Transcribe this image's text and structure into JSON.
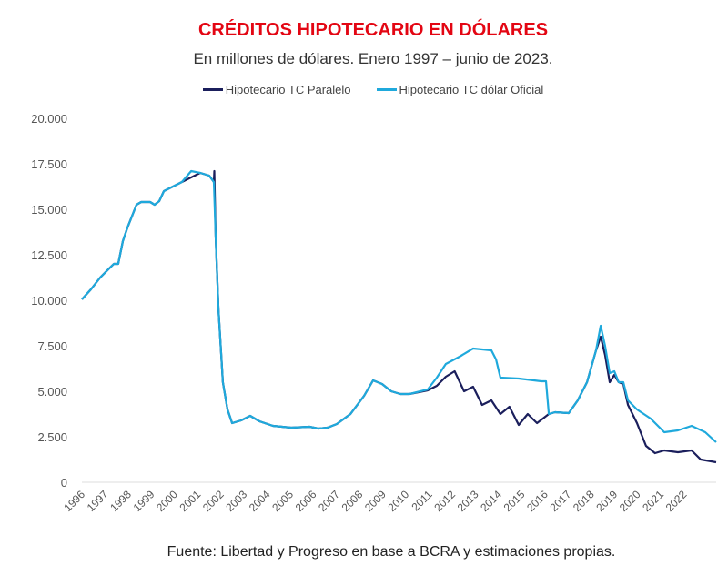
{
  "chart_data": {
    "type": "line",
    "title": "CRÉDITOS HIPOTECARIO EN DÓLARES",
    "subtitle": "En millones de dólares. Enero 1997 – junio de 2023.",
    "source": "Fuente: Libertad y Progreso en base a BCRA y estimaciones propias.",
    "xlabel": "",
    "ylabel": "",
    "xlim": [
      1996,
      2023.4
    ],
    "ylim": [
      0,
      20000
    ],
    "yticks": [
      0,
      2500,
      5000,
      7500,
      10000,
      12500,
      15000,
      17500,
      20000
    ],
    "ytick_labels": [
      "0",
      "2.500",
      "5.000",
      "7.500",
      "10.000",
      "12.500",
      "15.000",
      "17.500",
      "20.000"
    ],
    "xtick_labels": [
      "1996",
      "1997",
      "1998",
      "1999",
      "2000",
      "2001",
      "2002",
      "2003",
      "2004",
      "2005",
      "2006",
      "2007",
      "2008",
      "2009",
      "2010",
      "2011",
      "2012",
      "2013",
      "2014",
      "2015",
      "2016",
      "2017",
      "2018",
      "2019",
      "2020",
      "2021",
      "2022"
    ],
    "grid": false,
    "legend_position": "top",
    "series": [
      {
        "name": "Hipotecario TC Paralelo",
        "color": "#1b1f5c",
        "points": [
          [
            1996.0,
            10050
          ],
          [
            1996.39,
            10600
          ],
          [
            1996.79,
            11250
          ],
          [
            1997.18,
            11750
          ],
          [
            1997.38,
            12000
          ],
          [
            1997.57,
            12000
          ],
          [
            1997.77,
            13250
          ],
          [
            1997.97,
            14000
          ],
          [
            1998.36,
            15250
          ],
          [
            1998.56,
            15400
          ],
          [
            1998.95,
            15400
          ],
          [
            1999.14,
            15250
          ],
          [
            1999.34,
            15450
          ],
          [
            1999.54,
            16000
          ],
          [
            1999.93,
            16250
          ],
          [
            2000.32,
            16500
          ],
          [
            2001.72,
            17100
          ],
          [
            2001.11,
            17000
          ],
          [
            2001.5,
            16850
          ],
          [
            2001.7,
            16500
          ],
          [
            2001.78,
            13500
          ],
          [
            2001.9,
            9500
          ],
          [
            2002.09,
            5500
          ],
          [
            2002.29,
            4000
          ],
          [
            2002.49,
            3250
          ],
          [
            2002.88,
            3400
          ],
          [
            2003.27,
            3650
          ],
          [
            2003.67,
            3350
          ],
          [
            2004.25,
            3100
          ],
          [
            2005.04,
            3000
          ],
          [
            2005.83,
            3050
          ],
          [
            2006.22,
            2950
          ],
          [
            2006.61,
            3000
          ],
          [
            2007.01,
            3200
          ],
          [
            2007.6,
            3750
          ],
          [
            2008.19,
            4750
          ],
          [
            2008.58,
            5600
          ],
          [
            2008.97,
            5400
          ],
          [
            2009.36,
            5000
          ],
          [
            2009.76,
            4850
          ],
          [
            2010.15,
            4850
          ],
          [
            2010.94,
            5050
          ],
          [
            2011.33,
            5300
          ],
          [
            2011.72,
            5800
          ],
          [
            2012.1,
            6100
          ],
          [
            2012.51,
            5000
          ],
          [
            2012.9,
            5250
          ],
          [
            2013.29,
            4250
          ],
          [
            2013.69,
            4500
          ],
          [
            2014.08,
            3750
          ],
          [
            2014.47,
            4150
          ],
          [
            2014.87,
            3150
          ],
          [
            2015.26,
            3750
          ],
          [
            2015.66,
            3250
          ],
          [
            2016.17,
            3750
          ],
          [
            2016.44,
            3850
          ],
          [
            2017.03,
            3800
          ],
          [
            2017.42,
            4500
          ],
          [
            2017.82,
            5500
          ],
          [
            2018.21,
            7250
          ],
          [
            2018.41,
            8000
          ],
          [
            2018.6,
            7000
          ],
          [
            2018.8,
            5500
          ],
          [
            2019.0,
            5900
          ],
          [
            2019.19,
            5500
          ],
          [
            2019.39,
            5400
          ],
          [
            2019.59,
            4250
          ],
          [
            2019.98,
            3250
          ],
          [
            2020.37,
            2000
          ],
          [
            2020.76,
            1600
          ],
          [
            2021.16,
            1750
          ],
          [
            2021.75,
            1650
          ],
          [
            2022.34,
            1750
          ],
          [
            2022.73,
            1250
          ],
          [
            2023.4,
            1100
          ]
        ]
      },
      {
        "name": "Hipotecario TC dólar Oficial",
        "color": "#1fa9dc",
        "points": [
          [
            1996.0,
            10050
          ],
          [
            1996.39,
            10600
          ],
          [
            1996.79,
            11250
          ],
          [
            1997.18,
            11750
          ],
          [
            1997.38,
            12000
          ],
          [
            1997.57,
            12000
          ],
          [
            1997.77,
            13250
          ],
          [
            1997.97,
            14000
          ],
          [
            1998.36,
            15250
          ],
          [
            1998.56,
            15400
          ],
          [
            1998.95,
            15400
          ],
          [
            1999.14,
            15250
          ],
          [
            1999.34,
            15450
          ],
          [
            1999.54,
            16000
          ],
          [
            1999.93,
            16250
          ],
          [
            2000.32,
            16500
          ],
          [
            2000.72,
            17100
          ],
          [
            2001.11,
            17000
          ],
          [
            2001.5,
            16850
          ],
          [
            2001.7,
            16500
          ],
          [
            2001.78,
            13500
          ],
          [
            2001.9,
            9500
          ],
          [
            2002.09,
            5500
          ],
          [
            2002.29,
            4000
          ],
          [
            2002.49,
            3250
          ],
          [
            2002.88,
            3400
          ],
          [
            2003.27,
            3650
          ],
          [
            2003.67,
            3350
          ],
          [
            2004.25,
            3100
          ],
          [
            2005.04,
            3000
          ],
          [
            2005.83,
            3050
          ],
          [
            2006.22,
            2950
          ],
          [
            2006.61,
            3000
          ],
          [
            2007.01,
            3200
          ],
          [
            2007.6,
            3750
          ],
          [
            2008.19,
            4750
          ],
          [
            2008.58,
            5600
          ],
          [
            2008.97,
            5400
          ],
          [
            2009.36,
            5000
          ],
          [
            2009.76,
            4850
          ],
          [
            2010.15,
            4850
          ],
          [
            2010.94,
            5100
          ],
          [
            2011.33,
            5750
          ],
          [
            2011.72,
            6500
          ],
          [
            2012.31,
            6900
          ],
          [
            2012.9,
            7350
          ],
          [
            2013.69,
            7250
          ],
          [
            2013.89,
            6750
          ],
          [
            2014.08,
            5750
          ],
          [
            2014.87,
            5700
          ],
          [
            2015.85,
            5550
          ],
          [
            2016.05,
            5550
          ],
          [
            2016.17,
            3750
          ],
          [
            2016.44,
            3850
          ],
          [
            2017.03,
            3800
          ],
          [
            2017.42,
            4500
          ],
          [
            2017.82,
            5500
          ],
          [
            2018.21,
            7250
          ],
          [
            2018.41,
            8600
          ],
          [
            2018.6,
            7500
          ],
          [
            2018.8,
            6000
          ],
          [
            2019.0,
            6100
          ],
          [
            2019.19,
            5500
          ],
          [
            2019.39,
            5500
          ],
          [
            2019.59,
            4500
          ],
          [
            2019.98,
            4000
          ],
          [
            2020.57,
            3500
          ],
          [
            2021.16,
            2750
          ],
          [
            2021.75,
            2850
          ],
          [
            2022.34,
            3100
          ],
          [
            2022.93,
            2750
          ],
          [
            2023.4,
            2200
          ]
        ]
      }
    ]
  }
}
